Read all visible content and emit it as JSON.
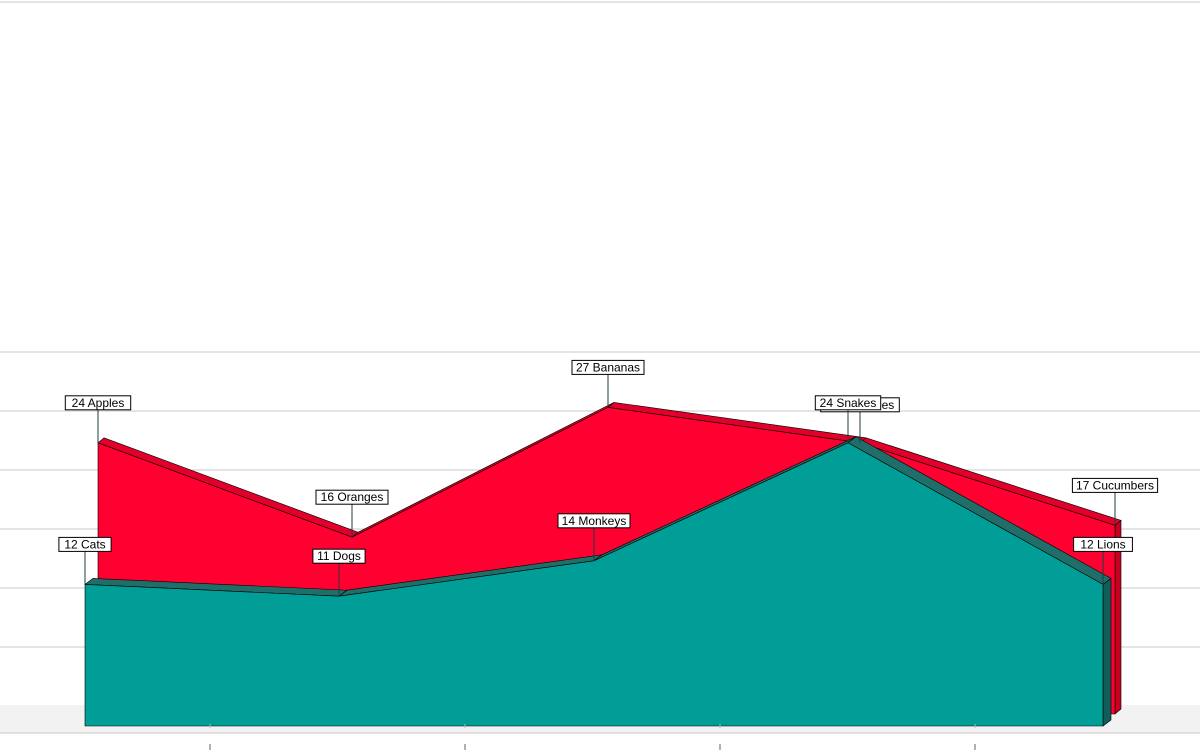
{
  "chart_data": {
    "type": "area",
    "style": "3d",
    "grid": true,
    "ylim": [
      0,
      30
    ],
    "categories": [
      "",
      "",
      "",
      "",
      ""
    ],
    "colors": {
      "back_face": "#ff0030",
      "back_top": "#e0002a",
      "back_side": "#c8001f",
      "front_face": "#009e96",
      "front_top": "#1f6e69",
      "front_side": "#0f5e59",
      "grid": "#c8c8c8"
    },
    "series": [
      {
        "name": "",
        "values": [
          24,
          16,
          27,
          24,
          17
        ],
        "labels": [
          "24 Apples",
          "16 Oranges",
          "27 Bananas",
          "24 Tomatoes",
          "17 Cucumbers"
        ]
      },
      {
        "name": "",
        "values": [
          12,
          11,
          14,
          24,
          12
        ],
        "labels": [
          "12 Cats",
          "11 Dogs",
          "14 Monkeys",
          "24 Snakes",
          "12 Lions"
        ]
      }
    ]
  }
}
